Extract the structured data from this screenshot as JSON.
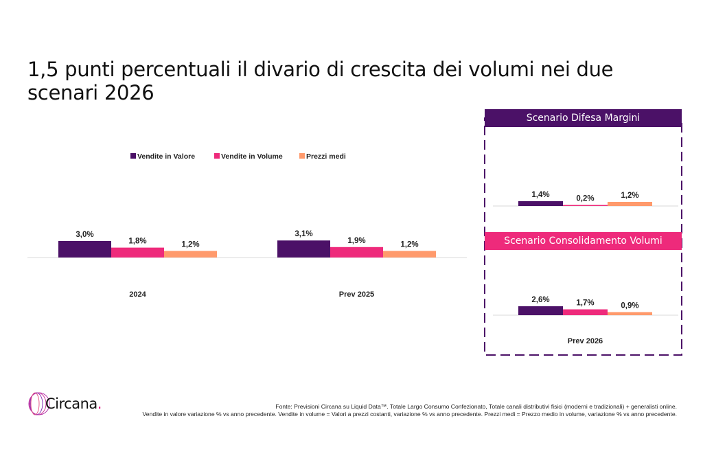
{
  "title": "1,5 punti percentuali il divario di crescita dei volumi nei due scenari 2026",
  "colors": {
    "valore": "#4b1167",
    "volume": "#ee2a7b",
    "prezzi": "#ff9a6c",
    "scenario1": "#4b1167",
    "scenario2": "#ee2a7b"
  },
  "logo": {
    "text": "Circana",
    "dot": "."
  },
  "source": {
    "line1": "Fonte: Previsioni Circana su Liquid Data™. Totale Largo Consumo Confezionato, Totale canali distributivi fisici (moderni e tradizionali) + generalisti online.",
    "line2": "Vendite in valore variazione % vs anno precedente. Vendite in volume = Valori a prezzi costanti, variazione % vs anno precedente. Prezzi medi = Prezzo medio in volume, variazione % vs anno precedente."
  },
  "chart_data": [
    {
      "type": "bar",
      "legend": [
        "Vendite in Valore",
        "Vendite in Volume",
        "Prezzi medi"
      ],
      "legend_position": "top",
      "categories": [
        "2024",
        "Prev 2025"
      ],
      "series": [
        {
          "name": "Vendite in Valore",
          "values": [
            3.0,
            3.1
          ],
          "labels": [
            "3,0%",
            "3,1%"
          ]
        },
        {
          "name": "Vendite in Volume",
          "values": [
            1.8,
            1.9
          ],
          "labels": [
            "1,8%",
            "1,9%"
          ]
        },
        {
          "name": "Prezzi medi",
          "values": [
            1.2,
            1.2
          ],
          "labels": [
            "1,2%",
            "1,2%"
          ]
        }
      ],
      "grid": false
    },
    {
      "type": "bar",
      "title": "Scenario Difesa Margini",
      "categories": [
        "Prev 2026"
      ],
      "series": [
        {
          "name": "Vendite in Valore",
          "values": [
            1.4
          ],
          "labels": [
            "1,4%"
          ]
        },
        {
          "name": "Vendite in Volume",
          "values": [
            0.2
          ],
          "labels": [
            "0,2%"
          ]
        },
        {
          "name": "Prezzi medi",
          "values": [
            1.2
          ],
          "labels": [
            "1,2%"
          ]
        }
      ]
    },
    {
      "type": "bar",
      "title": "Scenario Consolidamento Volumi",
      "categories": [
        "Prev 2026"
      ],
      "series": [
        {
          "name": "Vendite in Valore",
          "values": [
            2.6
          ],
          "labels": [
            "2,6%"
          ]
        },
        {
          "name": "Vendite in Volume",
          "values": [
            1.7
          ],
          "labels": [
            "1,7%"
          ]
        },
        {
          "name": "Prezzi medi",
          "values": [
            0.9
          ],
          "labels": [
            "0,9%"
          ]
        }
      ]
    }
  ]
}
